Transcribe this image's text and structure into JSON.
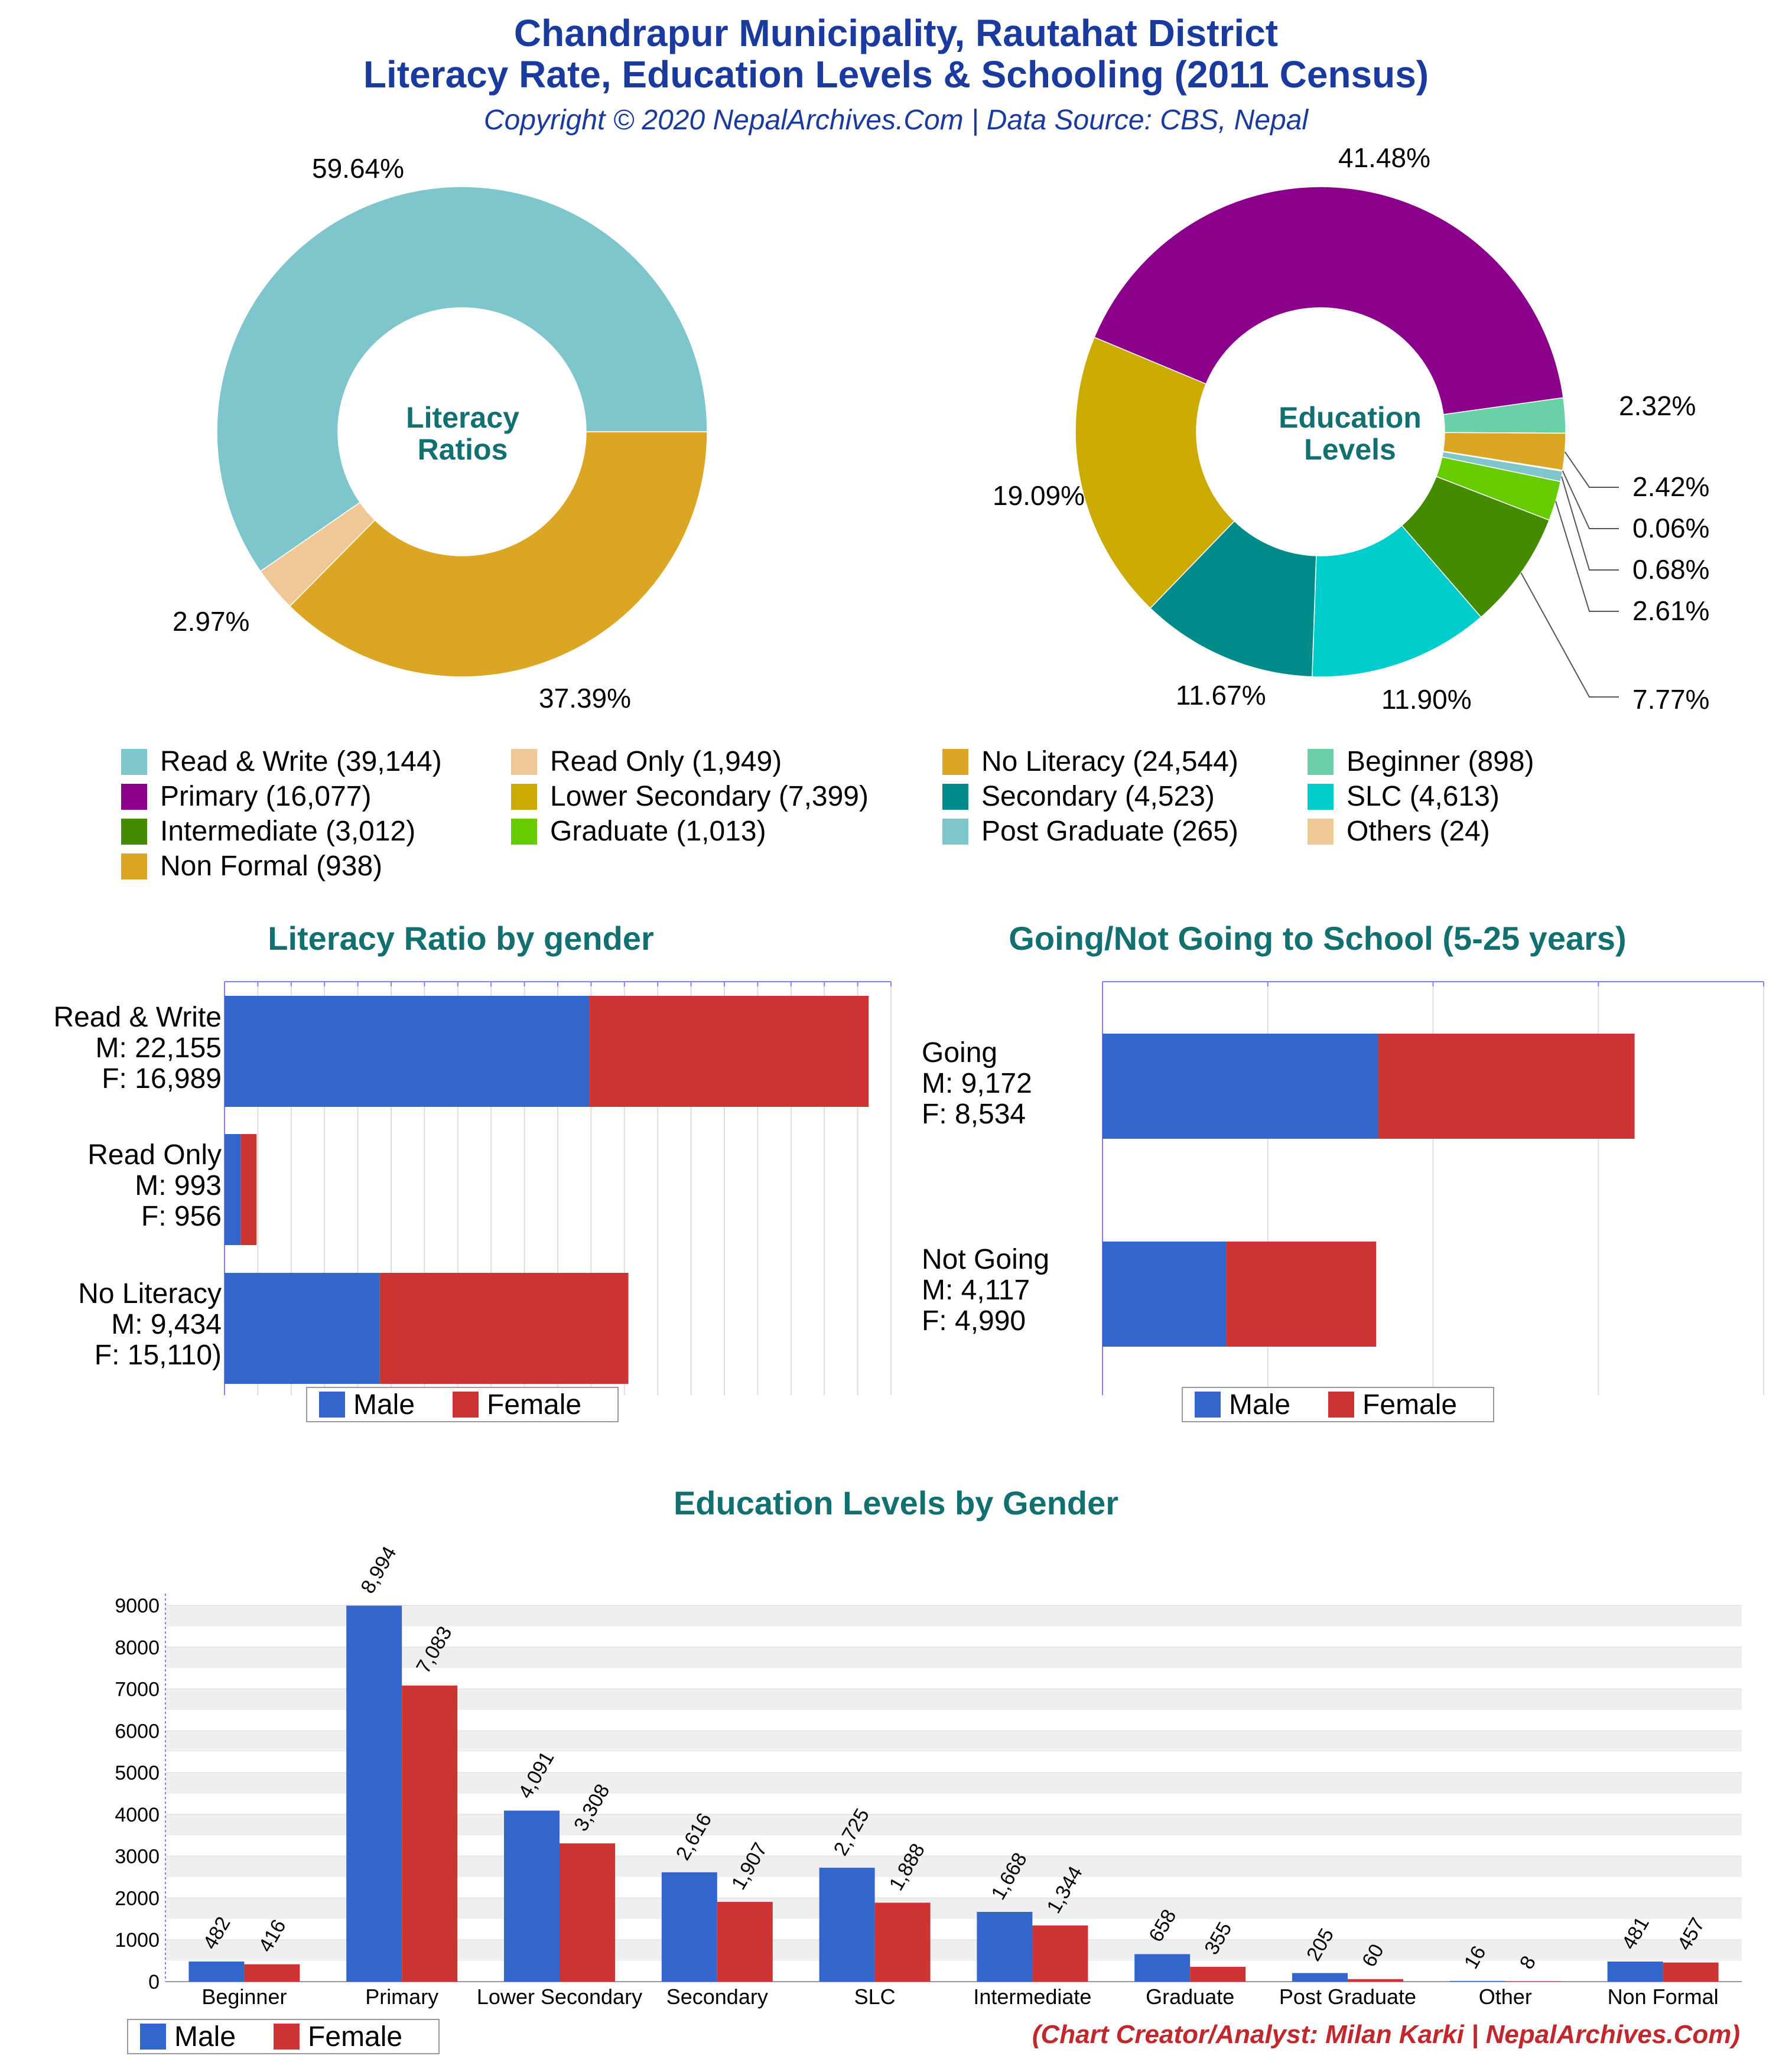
{
  "header": {
    "title_line1": "Chandrapur Municipality, Rautahat District",
    "title_line2": "Literacy Rate, Education Levels & Schooling (2011 Census)",
    "subtitle": "Copyright © 2020 NepalArchives.Com | Data Source: CBS, Nepal"
  },
  "colors": {
    "male": "#3366cc",
    "female": "#cc3333",
    "read_write": "#7fc5cc",
    "read_only": "#f0c896",
    "no_literacy": "#dba623",
    "beginner": "#6ad0a8",
    "primary": "#8b008b",
    "lower_secondary": "#ccab00",
    "secondary": "#008b8b",
    "slc": "#00cccc",
    "intermediate": "#458b00",
    "graduate": "#66cc00",
    "post_graduate": "#7fc5cc",
    "others": "#f0c896",
    "non_formal": "#dba623"
  },
  "literacy_donut": {
    "center_label_line1": "Literacy",
    "center_label_line2": "Ratios",
    "pct_read_write": "59.64%",
    "pct_read_only": "2.97%",
    "pct_no_literacy": "37.39%"
  },
  "education_donut": {
    "center_label_line1": "Education",
    "center_label_line2": "Levels",
    "pct_primary": "41.48%",
    "pct_beginner": "2.32%",
    "pct_non_formal": "2.42%",
    "pct_others": "0.06%",
    "pct_post_graduate": "0.68%",
    "pct_graduate": "2.61%",
    "pct_intermediate": "7.77%",
    "pct_slc": "11.90%",
    "pct_secondary": "11.67%",
    "pct_lower_secondary": "19.09%"
  },
  "legend": {
    "read_write": "Read & Write (39,144)",
    "read_only": "Read Only (1,949)",
    "no_literacy": "No Literacy (24,544)",
    "beginner": "Beginner (898)",
    "primary": "Primary (16,077)",
    "lower_secondary": "Lower Secondary (7,399)",
    "secondary": "Secondary (4,523)",
    "slc": "SLC (4,613)",
    "intermediate": "Intermediate (3,012)",
    "graduate": "Graduate (1,013)",
    "post_graduate": "Post Graduate (265)",
    "others": "Others (24)",
    "non_formal": "Non Formal (938)"
  },
  "literacy_gender": {
    "title": "Literacy Ratio by gender",
    "labels": [
      "Read & Write\nM: 22,155\nF: 16,989",
      "Read Only\nM: 993\nF: 956",
      "No Literacy\nM: 9,434\nF: 15,110)"
    ],
    "legend_male": "Male",
    "legend_female": "Female"
  },
  "school": {
    "title": "Going/Not Going to School (5-25 years)",
    "labels": [
      "Going\nM: 9,172\nF: 8,534",
      "Not Going\nM: 4,117\nF: 4,990"
    ],
    "legend_male": "Male",
    "legend_female": "Female"
  },
  "edu_gender": {
    "title": "Education Levels by Gender",
    "legend_male": "Male",
    "legend_female": "Female"
  },
  "credit": "(Chart Creator/Analyst: Milan Karki | NepalArchives.Com)",
  "chart_data": [
    {
      "type": "pie",
      "title": "Literacy Ratios",
      "categories": [
        "Read & Write",
        "Read Only",
        "No Literacy"
      ],
      "values": [
        39144,
        1949,
        24544
      ]
    },
    {
      "type": "pie",
      "title": "Education Levels",
      "categories": [
        "Primary",
        "Beginner",
        "Non Formal",
        "Others",
        "Post Graduate",
        "Graduate",
        "Intermediate",
        "SLC",
        "Secondary",
        "Lower Secondary"
      ],
      "values": [
        16077,
        898,
        938,
        24,
        265,
        1013,
        3012,
        4613,
        4523,
        7399
      ]
    },
    {
      "type": "bar",
      "title": "Literacy Ratio by gender",
      "categories": [
        "Read & Write",
        "Read Only",
        "No Literacy"
      ],
      "series": [
        {
          "name": "Male",
          "values": [
            22155,
            993,
            9434
          ]
        },
        {
          "name": "Female",
          "values": [
            16989,
            956,
            15110
          ]
        }
      ],
      "stacked": true,
      "orientation": "horizontal"
    },
    {
      "type": "bar",
      "title": "Going/Not Going to School (5-25 years)",
      "categories": [
        "Going",
        "Not Going"
      ],
      "series": [
        {
          "name": "Male",
          "values": [
            9172,
            4117
          ]
        },
        {
          "name": "Female",
          "values": [
            8534,
            4990
          ]
        }
      ],
      "stacked": true,
      "orientation": "horizontal"
    },
    {
      "type": "bar",
      "title": "Education Levels by Gender",
      "categories": [
        "Beginner",
        "Primary",
        "Lower Secondary",
        "Secondary",
        "SLC",
        "Intermediate",
        "Graduate",
        "Post Graduate",
        "Other",
        "Non Formal"
      ],
      "series": [
        {
          "name": "Male",
          "values": [
            482,
            8994,
            4091,
            2616,
            2725,
            1668,
            658,
            205,
            16,
            481
          ],
          "labels": [
            "482",
            "8,994",
            "4,091",
            "2,616",
            "2,725",
            "1,668",
            "658",
            "205",
            "16",
            "481"
          ]
        },
        {
          "name": "Female",
          "values": [
            416,
            7083,
            3308,
            1907,
            1888,
            1344,
            355,
            60,
            8,
            457
          ],
          "labels": [
            "416",
            "7,083",
            "3,308",
            "1,907",
            "1,888",
            "1,344",
            "355",
            "60",
            "8",
            "457"
          ]
        }
      ],
      "ylim": [
        0,
        9000
      ],
      "yticks": [
        "0",
        "1000",
        "2000",
        "3000",
        "4000",
        "5000",
        "6000",
        "7000",
        "8000",
        "9000"
      ],
      "grid": true,
      "legend": "bottom-left"
    }
  ]
}
